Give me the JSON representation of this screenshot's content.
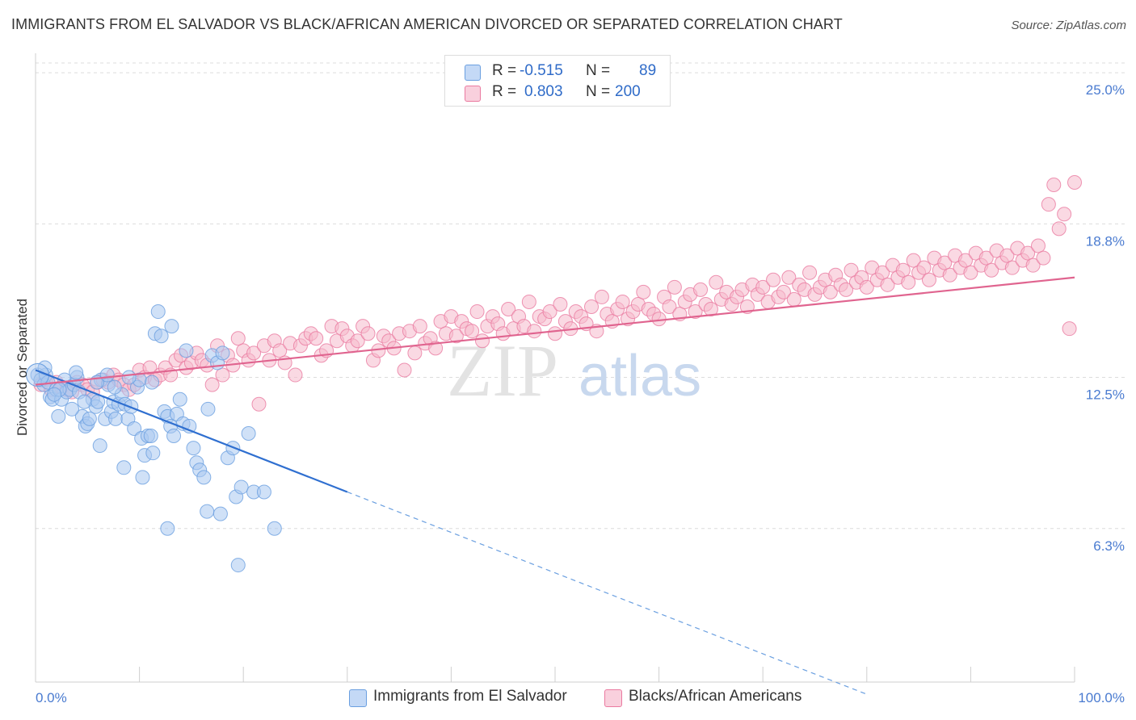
{
  "header": {
    "title": "IMMIGRANTS FROM EL SALVADOR VS BLACK/AFRICAN AMERICAN DIVORCED OR SEPARATED CORRELATION CHART",
    "source": "Source: ZipAtlas.com"
  },
  "watermark": "ZIPatlas",
  "legend": {
    "rows": [
      {
        "r_label": "R =",
        "r_value": "-0.515",
        "n_label": "N =",
        "n_value": "89",
        "color": "#a9c8f0"
      },
      {
        "r_label": "R =",
        "r_value": "0.803",
        "n_label": "N =",
        "n_value": "200",
        "color": "#f5b9cc"
      }
    ]
  },
  "bottom_legend": [
    {
      "label": "Immigrants from El Salvador",
      "color": "#a9c8f0"
    },
    {
      "label": "Blacks/African Americans",
      "color": "#f5b9cc"
    }
  ],
  "chart_data": {
    "type": "scatter",
    "title": "IMMIGRANTS FROM EL SALVADOR VS BLACK/AFRICAN AMERICAN DIVORCED OR SEPARATED CORRELATION CHART",
    "xlabel": "",
    "ylabel": "Divorced or Separated",
    "xlim": [
      0,
      100
    ],
    "ylim": [
      0,
      25.6
    ],
    "x_tick_labels": [
      "0.0%",
      "100.0%"
    ],
    "y_ticks": [
      6.3,
      12.5,
      18.8,
      25.0
    ],
    "y_tick_labels": [
      "6.3%",
      "12.5%",
      "18.8%",
      "25.0%"
    ],
    "grid": "horizontal dashed",
    "legend_position": "top-center",
    "series": [
      {
        "name": "Immigrants from El Salvador",
        "color": "#6a9fe0",
        "fill": "#a9c8f0",
        "trend": {
          "x0": 0,
          "y0": 12.8,
          "x1": 30,
          "y1": 7.8,
          "dashed_to_x": 80,
          "dashed_to_y": -0.5
        },
        "points": [
          [
            0.2,
            12.6
          ],
          [
            0.5,
            12.4
          ],
          [
            0.8,
            12.2
          ],
          [
            1.0,
            12.6
          ],
          [
            1.2,
            12.3
          ],
          [
            1.4,
            11.7
          ],
          [
            1.6,
            11.6
          ],
          [
            2.0,
            12.0
          ],
          [
            2.2,
            10.9
          ],
          [
            2.5,
            11.6
          ],
          [
            2.8,
            12.4
          ],
          [
            3.0,
            11.9
          ],
          [
            3.3,
            12.0
          ],
          [
            3.7,
            12.2
          ],
          [
            4.0,
            12.5
          ],
          [
            4.2,
            11.9
          ],
          [
            4.5,
            10.9
          ],
          [
            4.8,
            10.5
          ],
          [
            5.0,
            10.6
          ],
          [
            5.2,
            10.8
          ],
          [
            5.5,
            11.6
          ],
          [
            5.8,
            11.3
          ],
          [
            6.0,
            11.5
          ],
          [
            6.3,
            12.4
          ],
          [
            6.7,
            10.8
          ],
          [
            7.0,
            12.2
          ],
          [
            7.3,
            11.1
          ],
          [
            7.5,
            11.5
          ],
          [
            7.7,
            10.8
          ],
          [
            8.0,
            11.4
          ],
          [
            8.3,
            11.8
          ],
          [
            8.6,
            11.4
          ],
          [
            8.9,
            10.8
          ],
          [
            9.2,
            11.3
          ],
          [
            9.5,
            10.4
          ],
          [
            9.8,
            12.1
          ],
          [
            10.0,
            12.4
          ],
          [
            10.2,
            10.0
          ],
          [
            10.5,
            9.3
          ],
          [
            10.8,
            10.1
          ],
          [
            11.1,
            10.1
          ],
          [
            11.3,
            9.4
          ],
          [
            11.5,
            14.3
          ],
          [
            11.8,
            15.2
          ],
          [
            12.1,
            14.2
          ],
          [
            12.4,
            11.1
          ],
          [
            12.7,
            10.9
          ],
          [
            13.0,
            10.5
          ],
          [
            13.3,
            10.1
          ],
          [
            13.6,
            11.0
          ],
          [
            13.9,
            11.6
          ],
          [
            14.2,
            10.6
          ],
          [
            14.5,
            13.6
          ],
          [
            14.8,
            10.5
          ],
          [
            15.2,
            9.6
          ],
          [
            15.5,
            9.0
          ],
          [
            15.8,
            8.7
          ],
          [
            16.2,
            8.4
          ],
          [
            16.6,
            11.2
          ],
          [
            17.0,
            13.4
          ],
          [
            17.5,
            13.1
          ],
          [
            18.0,
            13.5
          ],
          [
            18.5,
            9.2
          ],
          [
            19.0,
            9.6
          ],
          [
            19.3,
            7.6
          ],
          [
            19.8,
            8.0
          ],
          [
            20.5,
            10.2
          ],
          [
            21.0,
            7.8
          ],
          [
            22.0,
            7.8
          ],
          [
            8.5,
            8.8
          ],
          [
            10.3,
            8.4
          ],
          [
            12.7,
            6.3
          ],
          [
            16.5,
            7.0
          ],
          [
            17.8,
            6.9
          ],
          [
            23.0,
            6.3
          ],
          [
            19.5,
            4.8
          ],
          [
            6.2,
            9.7
          ],
          [
            3.5,
            11.2
          ],
          [
            4.7,
            11.5
          ],
          [
            5.9,
            12.3
          ],
          [
            7.6,
            12.1
          ],
          [
            9.0,
            12.5
          ],
          [
            2.3,
            12.0
          ],
          [
            1.8,
            11.8
          ],
          [
            0.9,
            12.9
          ],
          [
            3.9,
            12.7
          ],
          [
            6.9,
            12.6
          ],
          [
            11.2,
            12.3
          ],
          [
            13.1,
            14.6
          ]
        ]
      },
      {
        "name": "Blacks/African Americans",
        "color": "#ea7aa0",
        "fill": "#f5b9cc",
        "trend": {
          "x0": 0,
          "y0": 12.2,
          "x1": 100,
          "y1": 16.6
        },
        "points": [
          [
            0.5,
            12.2
          ],
          [
            1.0,
            12.4
          ],
          [
            1.5,
            12.0
          ],
          [
            2.0,
            12.3
          ],
          [
            2.5,
            12.1
          ],
          [
            3.0,
            12.0
          ],
          [
            3.5,
            11.9
          ],
          [
            4.0,
            12.3
          ],
          [
            4.5,
            12.2
          ],
          [
            5.0,
            12.0
          ],
          [
            5.5,
            11.9
          ],
          [
            6.0,
            12.3
          ],
          [
            6.5,
            12.4
          ],
          [
            7.0,
            12.3
          ],
          [
            7.5,
            12.6
          ],
          [
            8.0,
            12.4
          ],
          [
            8.5,
            12.2
          ],
          [
            9.0,
            12.0
          ],
          [
            9.5,
            12.2
          ],
          [
            10.0,
            12.8
          ],
          [
            10.5,
            12.5
          ],
          [
            11.0,
            12.9
          ],
          [
            11.5,
            12.4
          ],
          [
            12.0,
            12.6
          ],
          [
            12.5,
            12.9
          ],
          [
            13.0,
            12.6
          ],
          [
            13.5,
            13.2
          ],
          [
            14.0,
            13.4
          ],
          [
            14.5,
            12.9
          ],
          [
            15.0,
            13.1
          ],
          [
            15.5,
            13.5
          ],
          [
            16.0,
            13.2
          ],
          [
            16.5,
            13.0
          ],
          [
            17.0,
            12.2
          ],
          [
            17.5,
            13.8
          ],
          [
            18.0,
            12.6
          ],
          [
            18.5,
            13.4
          ],
          [
            19.0,
            13.0
          ],
          [
            19.5,
            14.1
          ],
          [
            20.0,
            13.6
          ],
          [
            20.5,
            13.2
          ],
          [
            21.0,
            13.5
          ],
          [
            21.5,
            11.4
          ],
          [
            22.0,
            13.8
          ],
          [
            22.5,
            13.2
          ],
          [
            23.0,
            14.0
          ],
          [
            23.5,
            13.6
          ],
          [
            24.0,
            13.1
          ],
          [
            24.5,
            13.9
          ],
          [
            25.0,
            12.6
          ],
          [
            25.5,
            13.8
          ],
          [
            26.0,
            14.1
          ],
          [
            26.5,
            14.3
          ],
          [
            27.0,
            14.1
          ],
          [
            27.5,
            13.4
          ],
          [
            28.0,
            13.6
          ],
          [
            28.5,
            14.6
          ],
          [
            29.0,
            14.0
          ],
          [
            29.5,
            14.5
          ],
          [
            30.0,
            14.2
          ],
          [
            30.5,
            13.8
          ],
          [
            31.0,
            14.0
          ],
          [
            31.5,
            14.6
          ],
          [
            32.0,
            14.3
          ],
          [
            32.5,
            13.2
          ],
          [
            33.0,
            13.6
          ],
          [
            33.5,
            14.2
          ],
          [
            34.0,
            14.0
          ],
          [
            34.5,
            13.7
          ],
          [
            35.0,
            14.3
          ],
          [
            35.5,
            12.8
          ],
          [
            36.0,
            14.4
          ],
          [
            36.5,
            13.5
          ],
          [
            37.0,
            14.6
          ],
          [
            37.5,
            13.9
          ],
          [
            38.0,
            14.1
          ],
          [
            38.5,
            13.7
          ],
          [
            39.0,
            14.8
          ],
          [
            39.5,
            14.3
          ],
          [
            40.0,
            15.0
          ],
          [
            40.5,
            14.2
          ],
          [
            41.0,
            14.8
          ],
          [
            41.5,
            14.5
          ],
          [
            42.0,
            14.4
          ],
          [
            42.5,
            15.2
          ],
          [
            43.0,
            14.0
          ],
          [
            43.5,
            14.6
          ],
          [
            44.0,
            15.0
          ],
          [
            44.5,
            14.7
          ],
          [
            45.0,
            14.3
          ],
          [
            45.5,
            15.3
          ],
          [
            46.0,
            14.5
          ],
          [
            46.5,
            15.0
          ],
          [
            47.0,
            14.6
          ],
          [
            47.5,
            15.6
          ],
          [
            48.0,
            14.4
          ],
          [
            48.5,
            15.0
          ],
          [
            49.0,
            14.9
          ],
          [
            49.5,
            15.2
          ],
          [
            50.0,
            14.3
          ],
          [
            50.5,
            15.5
          ],
          [
            51.0,
            14.8
          ],
          [
            51.5,
            14.5
          ],
          [
            52.0,
            15.2
          ],
          [
            52.5,
            15.0
          ],
          [
            53.0,
            14.7
          ],
          [
            53.5,
            15.4
          ],
          [
            54.0,
            14.4
          ],
          [
            54.5,
            15.8
          ],
          [
            55.0,
            15.1
          ],
          [
            55.5,
            14.8
          ],
          [
            56.0,
            15.3
          ],
          [
            56.5,
            15.6
          ],
          [
            57.0,
            14.9
          ],
          [
            57.5,
            15.2
          ],
          [
            58.0,
            15.5
          ],
          [
            58.5,
            16.0
          ],
          [
            59.0,
            15.3
          ],
          [
            59.5,
            15.1
          ],
          [
            60.0,
            14.9
          ],
          [
            60.5,
            15.8
          ],
          [
            61.0,
            15.4
          ],
          [
            61.5,
            16.2
          ],
          [
            62.0,
            15.1
          ],
          [
            62.5,
            15.6
          ],
          [
            63.0,
            15.9
          ],
          [
            63.5,
            15.2
          ],
          [
            64.0,
            16.1
          ],
          [
            64.5,
            15.5
          ],
          [
            65.0,
            15.3
          ],
          [
            65.5,
            16.4
          ],
          [
            66.0,
            15.7
          ],
          [
            66.5,
            16.0
          ],
          [
            67.0,
            15.5
          ],
          [
            67.5,
            15.8
          ],
          [
            68.0,
            16.1
          ],
          [
            68.5,
            15.4
          ],
          [
            69.0,
            16.3
          ],
          [
            69.5,
            15.9
          ],
          [
            70.0,
            16.2
          ],
          [
            70.5,
            15.6
          ],
          [
            71.0,
            16.5
          ],
          [
            71.5,
            15.8
          ],
          [
            72.0,
            16.0
          ],
          [
            72.5,
            16.6
          ],
          [
            73.0,
            15.7
          ],
          [
            73.5,
            16.3
          ],
          [
            74.0,
            16.1
          ],
          [
            74.5,
            16.8
          ],
          [
            75.0,
            15.9
          ],
          [
            75.5,
            16.2
          ],
          [
            76.0,
            16.5
          ],
          [
            76.5,
            16.0
          ],
          [
            77.0,
            16.7
          ],
          [
            77.5,
            16.3
          ],
          [
            78.0,
            16.1
          ],
          [
            78.5,
            16.9
          ],
          [
            79.0,
            16.4
          ],
          [
            79.5,
            16.6
          ],
          [
            80.0,
            16.2
          ],
          [
            80.5,
            17.0
          ],
          [
            81.0,
            16.5
          ],
          [
            81.5,
            16.8
          ],
          [
            82.0,
            16.3
          ],
          [
            82.5,
            17.1
          ],
          [
            83.0,
            16.6
          ],
          [
            83.5,
            16.9
          ],
          [
            84.0,
            16.4
          ],
          [
            84.5,
            17.3
          ],
          [
            85.0,
            16.8
          ],
          [
            85.5,
            17.0
          ],
          [
            86.0,
            16.5
          ],
          [
            86.5,
            17.4
          ],
          [
            87.0,
            16.9
          ],
          [
            87.5,
            17.2
          ],
          [
            88.0,
            16.7
          ],
          [
            88.5,
            17.5
          ],
          [
            89.0,
            17.0
          ],
          [
            89.5,
            17.3
          ],
          [
            90.0,
            16.8
          ],
          [
            90.5,
            17.6
          ],
          [
            91.0,
            17.1
          ],
          [
            91.5,
            17.4
          ],
          [
            92.0,
            16.9
          ],
          [
            92.5,
            17.7
          ],
          [
            93.0,
            17.2
          ],
          [
            93.5,
            17.5
          ],
          [
            94.0,
            17.0
          ],
          [
            94.5,
            17.8
          ],
          [
            95.0,
            17.3
          ],
          [
            95.5,
            17.6
          ],
          [
            96.0,
            17.1
          ],
          [
            96.5,
            17.9
          ],
          [
            97.0,
            17.4
          ],
          [
            97.5,
            19.6
          ],
          [
            98.0,
            20.4
          ],
          [
            98.5,
            18.6
          ],
          [
            99.0,
            19.2
          ],
          [
            99.5,
            14.5
          ],
          [
            100.0,
            20.5
          ]
        ]
      }
    ]
  }
}
